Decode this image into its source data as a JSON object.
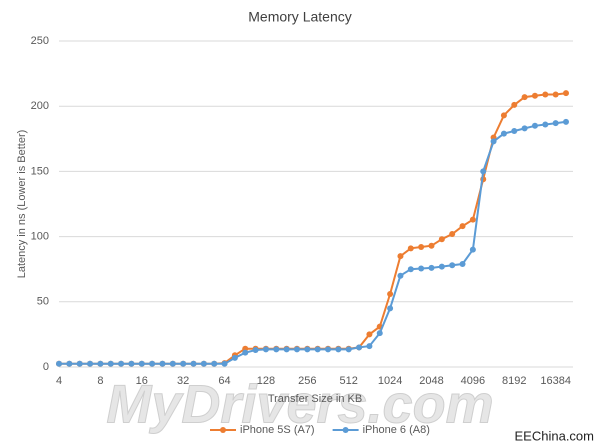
{
  "chart_data": {
    "type": "line",
    "title": "Memory Latency",
    "x_label": "Transfer Size in KB",
    "y_label": "Latency in ns (Lower is Better)",
    "categories": [
      4,
      null,
      null,
      null,
      8,
      null,
      null,
      null,
      16,
      null,
      null,
      null,
      32,
      null,
      null,
      null,
      64,
      null,
      null,
      null,
      128,
      null,
      null,
      null,
      256,
      null,
      null,
      null,
      512,
      null,
      null,
      null,
      1024,
      null,
      null,
      null,
      2048,
      null,
      null,
      null,
      4096,
      null,
      null,
      null,
      8192,
      null,
      null,
      null,
      16384,
      null
    ],
    "series": [
      {
        "name": "iPhone 5S (A7)",
        "color": "#ed7d31",
        "values": [
          2.5,
          2.5,
          2.5,
          2.5,
          2.5,
          2.5,
          2.5,
          2.5,
          2.5,
          2.5,
          2.5,
          2.5,
          2.5,
          2.5,
          2.5,
          2.5,
          3,
          9,
          14,
          14,
          14,
          14,
          14,
          14,
          14,
          14,
          14,
          14,
          14,
          15,
          25,
          31,
          56,
          85,
          91,
          92,
          93,
          98,
          102,
          108,
          113,
          144,
          176,
          193,
          201,
          207,
          208,
          209,
          209,
          210
        ]
      },
      {
        "name": "iPhone 6 (A8)",
        "color": "#5b9bd5",
        "values": [
          2.5,
          2.5,
          2.5,
          2.5,
          2.5,
          2.5,
          2.5,
          2.5,
          2.5,
          2.5,
          2.5,
          2.5,
          2.5,
          2.5,
          2.5,
          2.5,
          2.5,
          7,
          11,
          13,
          13.5,
          13.5,
          13.5,
          13.5,
          13.5,
          13.5,
          13.5,
          13.5,
          13.5,
          15,
          16,
          26,
          45,
          70,
          75,
          75.5,
          76,
          77,
          78,
          79,
          90,
          150,
          173,
          179,
          181,
          183,
          185,
          186,
          187,
          188
        ]
      }
    ],
    "ylim": [
      0,
      250
    ],
    "yticks": [
      0,
      50,
      100,
      150,
      200,
      250
    ],
    "grid": true,
    "legend": "bottom",
    "watermark": "MyDrivers.com",
    "source": "EEChina.com"
  }
}
